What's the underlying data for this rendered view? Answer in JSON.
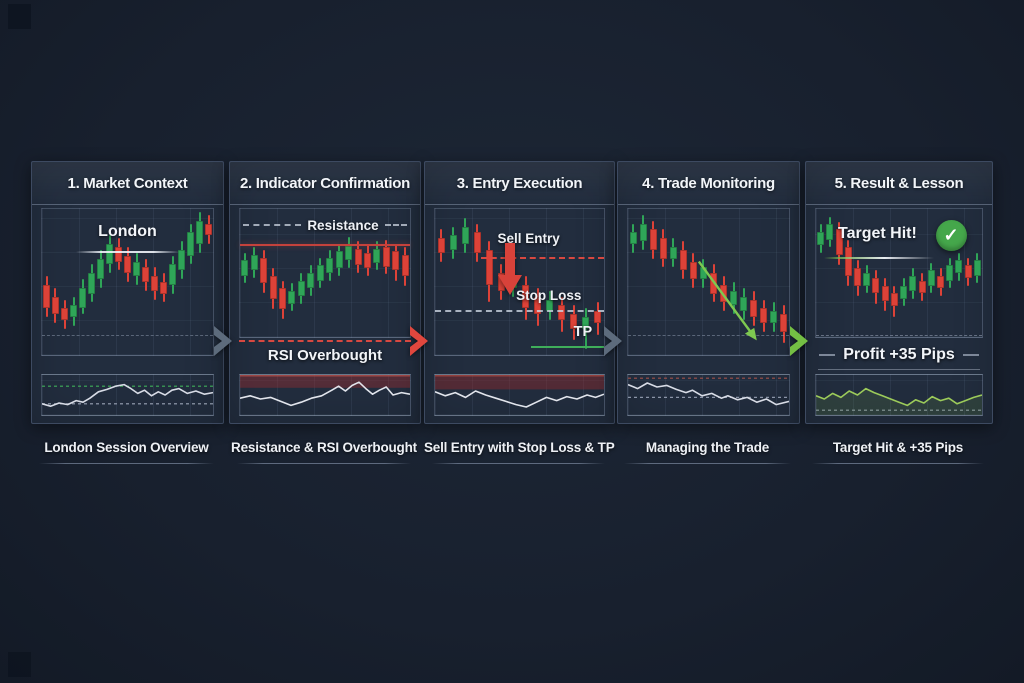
{
  "colors": {
    "candle_green": "#2fa558",
    "candle_red": "#dd4238",
    "rsi_line": "#d8dce6",
    "profit_line": "#9ccb5a",
    "resistance_line": "#c4423c",
    "tp_line": "#3fae5a",
    "arrow_gray": "#5d6b7c",
    "arrow_red": "#e0473e",
    "arrow_green": "#74bf44",
    "check_green": "#45a74b",
    "panel_bg": "#222d3e",
    "page_bg": "#18202e"
  },
  "arrows": [
    {
      "color": "#5d6b7c"
    },
    {
      "color": "#e0473e"
    },
    {
      "color": "#5d6b7c"
    },
    {
      "color": "#74bf44"
    }
  ],
  "panels": [
    {
      "title": "1. Market Context",
      "chart_label": "London",
      "caption": "London Session Overview",
      "candles": [
        [
          "r",
          52,
          68,
          46,
          74
        ],
        [
          "r",
          60,
          72,
          54,
          78
        ],
        [
          "r",
          68,
          76,
          62,
          82
        ],
        [
          "g",
          66,
          74,
          60,
          80
        ],
        [
          "g",
          54,
          68,
          48,
          72
        ],
        [
          "g",
          44,
          58,
          38,
          64
        ],
        [
          "g",
          34,
          48,
          28,
          54
        ],
        [
          "g",
          24,
          38,
          18,
          44
        ],
        [
          "r",
          26,
          36,
          20,
          42
        ],
        [
          "r",
          32,
          44,
          26,
          50
        ],
        [
          "g",
          36,
          46,
          30,
          52
        ],
        [
          "r",
          40,
          50,
          34,
          56
        ],
        [
          "r",
          46,
          56,
          40,
          62
        ],
        [
          "r",
          50,
          58,
          44,
          64
        ],
        [
          "g",
          38,
          52,
          32,
          58
        ],
        [
          "g",
          28,
          42,
          22,
          48
        ],
        [
          "g",
          16,
          32,
          10,
          38
        ],
        [
          "g",
          8,
          24,
          2,
          30
        ],
        [
          "r",
          10,
          18,
          4,
          24
        ]
      ],
      "rsi": {
        "line": "#d8dce6",
        "points": [
          [
            0,
            72
          ],
          [
            5,
            78
          ],
          [
            10,
            70
          ],
          [
            15,
            74
          ],
          [
            20,
            64
          ],
          [
            24,
            68
          ],
          [
            28,
            58
          ],
          [
            33,
            42
          ],
          [
            38,
            36
          ],
          [
            43,
            28
          ],
          [
            48,
            24
          ],
          [
            52,
            34
          ],
          [
            56,
            46
          ],
          [
            60,
            38
          ],
          [
            64,
            52
          ],
          [
            68,
            42
          ],
          [
            72,
            50
          ],
          [
            76,
            38
          ],
          [
            80,
            34
          ],
          [
            85,
            46
          ],
          [
            90,
            40
          ],
          [
            95,
            48
          ],
          [
            100,
            44
          ]
        ],
        "hlines": [
          [
            28,
            "#3fae5a",
            "dash"
          ],
          [
            72,
            "#9aa4b5",
            "dash"
          ]
        ]
      }
    },
    {
      "title": "2. Indicator Confirmation",
      "resistance_label": "Resistance",
      "mid_label": "RSI Overbought",
      "caption": "Resistance & RSI Overbought",
      "candles": [
        [
          "g",
          40,
          52,
          34,
          58
        ],
        [
          "g",
          36,
          48,
          30,
          54
        ],
        [
          "r",
          38,
          58,
          32,
          66
        ],
        [
          "r",
          52,
          70,
          46,
          78
        ],
        [
          "r",
          62,
          78,
          56,
          86
        ],
        [
          "g",
          64,
          74,
          58,
          80
        ],
        [
          "g",
          56,
          68,
          50,
          74
        ],
        [
          "g",
          50,
          62,
          44,
          68
        ],
        [
          "g",
          44,
          56,
          38,
          62
        ],
        [
          "g",
          38,
          50,
          32,
          56
        ],
        [
          "g",
          33,
          46,
          27,
          52
        ],
        [
          "g",
          29,
          40,
          22,
          46
        ],
        [
          "r",
          31,
          44,
          25,
          50
        ],
        [
          "r",
          34,
          46,
          28,
          52
        ],
        [
          "g",
          31,
          42,
          25,
          48
        ],
        [
          "r",
          30,
          45,
          24,
          51
        ],
        [
          "r",
          33,
          48,
          27,
          56
        ],
        [
          "r",
          36,
          52,
          30,
          60
        ]
      ],
      "rsi": {
        "line": "#e2e5ec",
        "points": [
          [
            0,
            58
          ],
          [
            6,
            52
          ],
          [
            12,
            60
          ],
          [
            18,
            56
          ],
          [
            24,
            66
          ],
          [
            30,
            76
          ],
          [
            36,
            68
          ],
          [
            42,
            58
          ],
          [
            48,
            52
          ],
          [
            54,
            38
          ],
          [
            58,
            28
          ],
          [
            62,
            40
          ],
          [
            66,
            26
          ],
          [
            70,
            18
          ],
          [
            74,
            34
          ],
          [
            78,
            48
          ],
          [
            82,
            38
          ],
          [
            86,
            30
          ],
          [
            90,
            50
          ],
          [
            95,
            44
          ],
          [
            100,
            48
          ]
        ],
        "band": [
          0,
          32,
          "rgba(160,45,48,0.40)"
        ],
        "hlines": [
          [
            2,
            "#b4504a",
            "solid"
          ]
        ]
      }
    },
    {
      "title": "3. Entry Execution",
      "sell_entry_label": "Sell Entry",
      "stop_loss_label": "Stop Loss",
      "tp_label": "TP",
      "caption": "Sell Entry with Stop Loss & TP",
      "candles": [
        [
          "r",
          20,
          30,
          14,
          36
        ],
        [
          "g",
          18,
          28,
          12,
          34
        ],
        [
          "g",
          12,
          24,
          6,
          30
        ],
        [
          "r",
          16,
          30,
          10,
          36
        ],
        [
          "r",
          28,
          52,
          22,
          64
        ],
        [
          "r",
          44,
          56,
          38,
          62
        ],
        [
          "g",
          46,
          54,
          40,
          60
        ],
        [
          "r",
          52,
          68,
          46,
          76
        ],
        [
          "r",
          60,
          72,
          54,
          80
        ],
        [
          "g",
          62,
          70,
          56,
          76
        ],
        [
          "r",
          66,
          76,
          60,
          84
        ],
        [
          "r",
          72,
          82,
          66,
          90
        ],
        [
          "g",
          74,
          82,
          68,
          96
        ],
        [
          "r",
          70,
          78,
          64,
          86
        ]
      ],
      "rsi": {
        "line": "#e2e5ec",
        "points": [
          [
            0,
            42
          ],
          [
            6,
            52
          ],
          [
            12,
            44
          ],
          [
            18,
            56
          ],
          [
            24,
            40
          ],
          [
            30,
            50
          ],
          [
            36,
            58
          ],
          [
            42,
            66
          ],
          [
            48,
            74
          ],
          [
            54,
            80
          ],
          [
            60,
            68
          ],
          [
            66,
            56
          ],
          [
            72,
            64
          ],
          [
            78,
            54
          ],
          [
            84,
            60
          ],
          [
            90,
            50
          ],
          [
            95,
            56
          ],
          [
            100,
            48
          ]
        ],
        "band": [
          0,
          36,
          "rgba(150,40,44,0.42)"
        ],
        "hlines": [
          [
            2,
            "#a84840",
            "solid"
          ]
        ]
      }
    },
    {
      "title": "4. Trade Monitoring",
      "caption": "Managing the Trade",
      "candles": [
        [
          "g",
          16,
          24,
          10,
          30
        ],
        [
          "g",
          10,
          22,
          4,
          28
        ],
        [
          "r",
          14,
          28,
          8,
          34
        ],
        [
          "r",
          20,
          34,
          14,
          40
        ],
        [
          "g",
          26,
          34,
          20,
          40
        ],
        [
          "r",
          28,
          42,
          22,
          48
        ],
        [
          "r",
          36,
          48,
          30,
          54
        ],
        [
          "g",
          40,
          48,
          34,
          54
        ],
        [
          "r",
          44,
          58,
          38,
          64
        ],
        [
          "r",
          52,
          64,
          46,
          70
        ],
        [
          "g",
          56,
          66,
          50,
          72
        ],
        [
          "g",
          60,
          70,
          54,
          76
        ],
        [
          "r",
          62,
          74,
          56,
          80
        ],
        [
          "r",
          68,
          78,
          62,
          84
        ],
        [
          "g",
          70,
          78,
          64,
          84
        ],
        [
          "r",
          72,
          84,
          66,
          92
        ]
      ],
      "rsi": {
        "line": "#d8dce6",
        "points": [
          [
            0,
            24
          ],
          [
            6,
            34
          ],
          [
            12,
            20
          ],
          [
            18,
            30
          ],
          [
            24,
            26
          ],
          [
            30,
            36
          ],
          [
            36,
            44
          ],
          [
            40,
            38
          ],
          [
            46,
            52
          ],
          [
            52,
            46
          ],
          [
            58,
            58
          ],
          [
            62,
            52
          ],
          [
            68,
            62
          ],
          [
            74,
            56
          ],
          [
            80,
            68
          ],
          [
            86,
            60
          ],
          [
            92,
            74
          ],
          [
            100,
            66
          ]
        ],
        "hlines": [
          [
            8,
            "#a05048",
            "dash"
          ],
          [
            56,
            "#8b95a8",
            "dash"
          ]
        ]
      }
    },
    {
      "title": "5. Result & Lesson",
      "target_label": "Target Hit!",
      "check_icon": "✓",
      "profit_label": "Profit +35 Pips",
      "caption": "Target Hit & +35 Pips",
      "candles": [
        [
          "g",
          18,
          28,
          12,
          34
        ],
        [
          "g",
          12,
          24,
          6,
          30
        ],
        [
          "r",
          16,
          36,
          10,
          44
        ],
        [
          "r",
          30,
          52,
          24,
          60
        ],
        [
          "r",
          46,
          60,
          40,
          68
        ],
        [
          "g",
          50,
          60,
          44,
          66
        ],
        [
          "r",
          54,
          66,
          48,
          74
        ],
        [
          "r",
          60,
          72,
          54,
          80
        ],
        [
          "r",
          66,
          76,
          60,
          84
        ],
        [
          "g",
          60,
          70,
          54,
          76
        ],
        [
          "g",
          52,
          64,
          46,
          70
        ],
        [
          "r",
          56,
          66,
          50,
          72
        ],
        [
          "g",
          48,
          60,
          42,
          66
        ],
        [
          "r",
          52,
          62,
          46,
          68
        ],
        [
          "g",
          44,
          56,
          38,
          62
        ],
        [
          "g",
          40,
          50,
          34,
          56
        ],
        [
          "r",
          44,
          54,
          38,
          60
        ],
        [
          "g",
          40,
          52,
          34,
          58
        ]
      ],
      "rsi": {
        "line": "#9ccb5a",
        "area": "rgba(130,185,70,0.14)",
        "points": [
          [
            0,
            52
          ],
          [
            5,
            60
          ],
          [
            10,
            46
          ],
          [
            15,
            56
          ],
          [
            20,
            40
          ],
          [
            25,
            50
          ],
          [
            30,
            34
          ],
          [
            35,
            44
          ],
          [
            40,
            52
          ],
          [
            45,
            60
          ],
          [
            50,
            68
          ],
          [
            55,
            76
          ],
          [
            60,
            62
          ],
          [
            65,
            70
          ],
          [
            70,
            54
          ],
          [
            75,
            64
          ],
          [
            80,
            58
          ],
          [
            85,
            72
          ],
          [
            90,
            64
          ],
          [
            95,
            56
          ],
          [
            100,
            50
          ]
        ],
        "hlines": [
          [
            88,
            "#8b95a8",
            "dash"
          ]
        ]
      }
    }
  ]
}
